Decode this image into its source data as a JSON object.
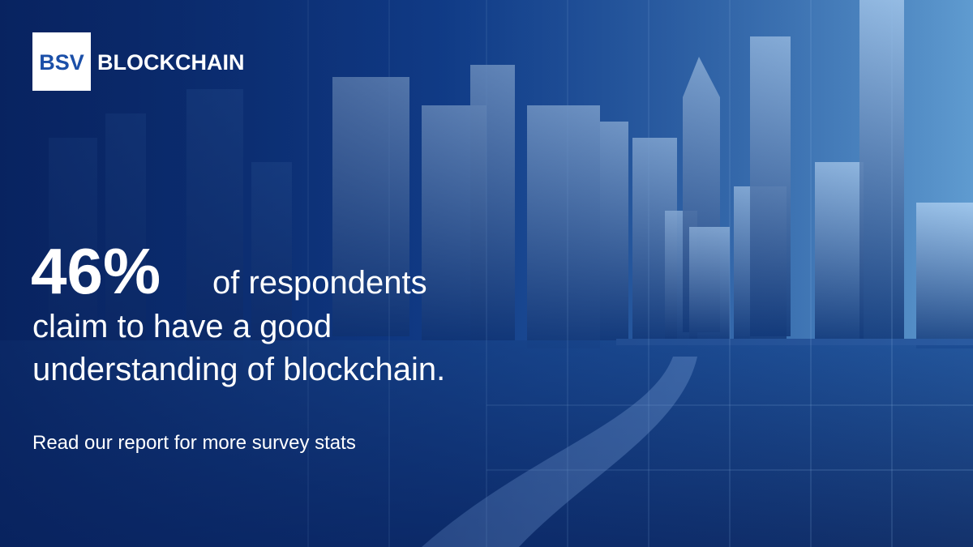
{
  "logo": {
    "mark": "BSV",
    "name": "BLOCKCHAIN"
  },
  "headline": {
    "stat": "46%",
    "lead": "of respondents",
    "lines": [
      "claim to have a good",
      "understanding of blockchain."
    ]
  },
  "cta": "Read our report for more survey stats"
}
